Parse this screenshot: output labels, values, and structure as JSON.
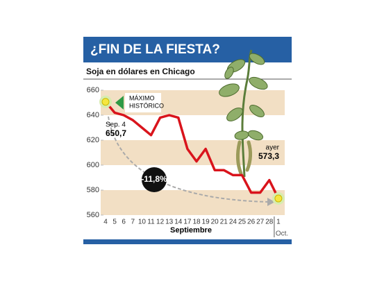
{
  "chart_data": {
    "type": "line",
    "title": "¿FIN DE LA FIESTA?",
    "subtitle": "Soja en dólares en Chicago",
    "categories": [
      "4",
      "5",
      "6",
      "7",
      "10",
      "11",
      "12",
      "13",
      "14",
      "17",
      "18",
      "19",
      "20",
      "21",
      "24",
      "25",
      "26",
      "27",
      "28",
      "1"
    ],
    "values": [
      650.7,
      642,
      640,
      636,
      630,
      624,
      638,
      640,
      638,
      613,
      603,
      613,
      596,
      596,
      592,
      592,
      578,
      578,
      588,
      573.3
    ],
    "color": "#d9141c",
    "band_color": "#f2dfc4",
    "ylim": [
      560,
      660
    ],
    "yticks": [
      560,
      580,
      600,
      620,
      640,
      660
    ],
    "x_label": "Septiembre",
    "x_label_next": "Oct.",
    "max_note": [
      "MÁXIMO",
      "HISTÓRICO"
    ],
    "start_label": {
      "date": "Sep. 4",
      "value": "650,7"
    },
    "end_label": {
      "date": "ayer",
      "value": "573,3"
    },
    "change_label": "-11,8%"
  }
}
